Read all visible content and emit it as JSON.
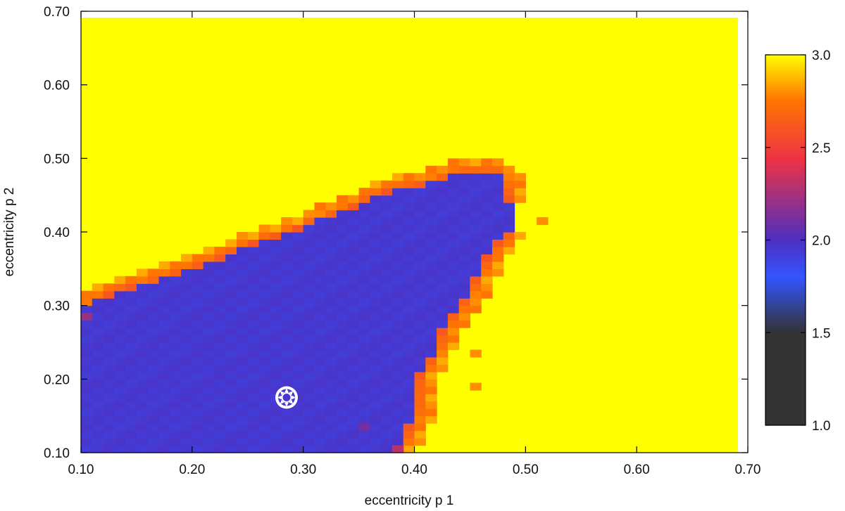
{
  "chart_data": {
    "type": "heatmap",
    "title": "",
    "xlabel": "eccentricity p 1",
    "ylabel": "eccentricity p 2",
    "xlim": [
      0.1,
      0.7
    ],
    "ylim": [
      0.1,
      0.7
    ],
    "x_ticks": [
      "0.10",
      "0.20",
      "0.30",
      "0.40",
      "0.50",
      "0.60",
      "0.70"
    ],
    "y_ticks": [
      "0.10",
      "0.20",
      "0.30",
      "0.40",
      "0.50",
      "0.60",
      "0.70"
    ],
    "grid": false,
    "colorbar": {
      "range": [
        1.0,
        3.0
      ],
      "ticks": [
        "1.0",
        "1.5",
        "2.0",
        "2.5",
        "3.0"
      ],
      "colors": {
        "low": "#333333",
        "mid_dark": "#333333",
        "blue": "#3355ff",
        "purple": "#4d2fc0",
        "red": "#ee3344",
        "orange": "#ff7700",
        "high": "#ffff00"
      }
    },
    "grid_step": 0.01,
    "background_value": 3.0,
    "stable_region": {
      "value": 1.95,
      "upper_boundary_p2_by_p1": [
        [
          0.1,
          0.302
        ],
        [
          0.12,
          0.322
        ],
        [
          0.14,
          0.333
        ],
        [
          0.16,
          0.338
        ],
        [
          0.18,
          0.35
        ],
        [
          0.2,
          0.36
        ],
        [
          0.22,
          0.37
        ],
        [
          0.24,
          0.385
        ],
        [
          0.26,
          0.398
        ],
        [
          0.28,
          0.405
        ],
        [
          0.3,
          0.418
        ],
        [
          0.32,
          0.428
        ],
        [
          0.34,
          0.44
        ],
        [
          0.36,
          0.455
        ],
        [
          0.38,
          0.468
        ],
        [
          0.4,
          0.472
        ],
        [
          0.42,
          0.478
        ],
        [
          0.44,
          0.49
        ],
        [
          0.46,
          0.49
        ],
        [
          0.48,
          0.49
        ]
      ],
      "right_boundary_p1_by_p2": [
        [
          0.1,
          0.39
        ],
        [
          0.12,
          0.4
        ],
        [
          0.14,
          0.405
        ],
        [
          0.16,
          0.41
        ],
        [
          0.18,
          0.41
        ],
        [
          0.2,
          0.412
        ],
        [
          0.22,
          0.42
        ],
        [
          0.24,
          0.428
        ],
        [
          0.26,
          0.432
        ],
        [
          0.28,
          0.44
        ],
        [
          0.3,
          0.45
        ],
        [
          0.32,
          0.458
        ],
        [
          0.34,
          0.465
        ],
        [
          0.36,
          0.473
        ],
        [
          0.38,
          0.48
        ],
        [
          0.4,
          0.495
        ],
        [
          0.42,
          0.5
        ],
        [
          0.44,
          0.495
        ],
        [
          0.46,
          0.49
        ],
        [
          0.48,
          0.485
        ],
        [
          0.5,
          0.47
        ]
      ],
      "edge_value": 2.6
    },
    "isolated_cells": [
      {
        "p1": 0.455,
        "p2": 0.235,
        "value": 2.8
      },
      {
        "p1": 0.455,
        "p2": 0.19,
        "value": 2.8
      },
      {
        "p1": 0.515,
        "p2": 0.415,
        "value": 2.8
      },
      {
        "p1": 0.385,
        "p2": 0.105,
        "value": 2.3
      },
      {
        "p1": 0.355,
        "p2": 0.135,
        "value": 2.1
      },
      {
        "p1": 0.105,
        "p2": 0.285,
        "value": 2.2
      }
    ],
    "marker": {
      "p1": 0.285,
      "p2": 0.175,
      "color": "#ffffff",
      "shape": "sun-icon"
    }
  }
}
